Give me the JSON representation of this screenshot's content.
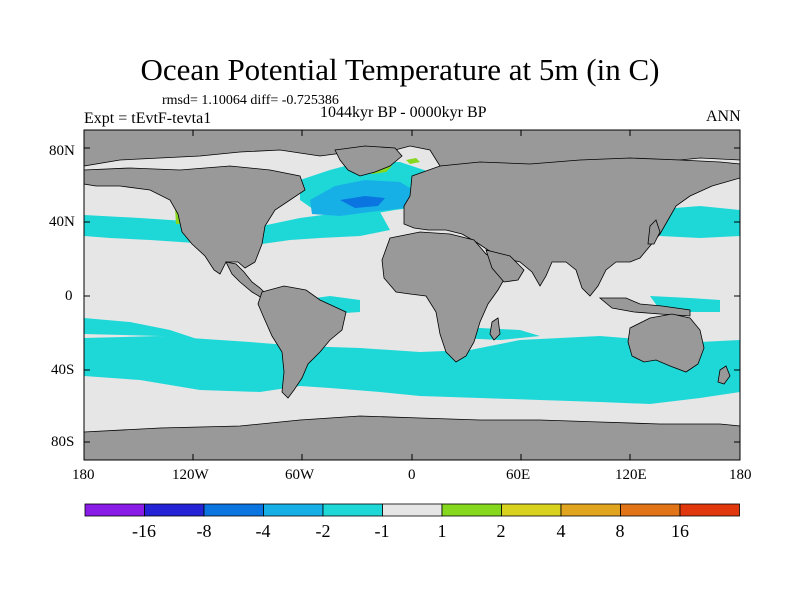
{
  "title": "Ocean Potential Temperature at 5m (in C)",
  "stats_text": "rmsd= 1.10064  diff= -0.725386",
  "left_label": "Expt = tEvtF-tevta1",
  "center_label": "1044kyr BP - 0000kyr BP",
  "right_label": "ANN",
  "lat_ticks": [
    "80N",
    "40N",
    "0",
    "40S",
    "80S"
  ],
  "lon_ticks": [
    "180",
    "120W",
    "60W",
    "0",
    "60E",
    "120E",
    "180"
  ],
  "colorbar": {
    "labels": [
      "-16",
      "-8",
      "-4",
      "-2",
      "-1",
      "1",
      "2",
      "4",
      "8",
      "16"
    ],
    "colors": [
      "#8a1ce8",
      "#2424d6",
      "#0a74e0",
      "#16b0e6",
      "#1ed8d8",
      "#e6e6e6",
      "#86d81e",
      "#d8d21e",
      "#e0a41e",
      "#e07416",
      "#e0380c"
    ]
  },
  "colors": {
    "land": "#999999",
    "no_change": "#e6e6e6",
    "cool_1": "#1ed8d8",
    "cool_2": "#16b0e6",
    "cool_4": "#0a74e0",
    "warm_1": "#86d81e",
    "warm_2": "#d8d21e"
  }
}
